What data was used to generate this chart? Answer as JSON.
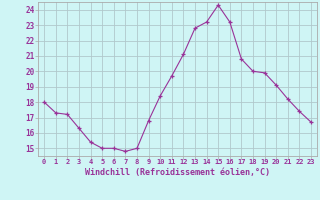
{
  "x": [
    0,
    1,
    2,
    3,
    4,
    5,
    6,
    7,
    8,
    9,
    10,
    11,
    12,
    13,
    14,
    15,
    16,
    17,
    18,
    19,
    20,
    21,
    22,
    23
  ],
  "y": [
    18,
    17.3,
    17.2,
    16.3,
    15.4,
    15.0,
    15.0,
    14.8,
    15.0,
    16.8,
    18.4,
    19.7,
    21.1,
    22.8,
    23.2,
    24.3,
    23.2,
    20.8,
    20.0,
    19.9,
    19.1,
    18.2,
    17.4,
    16.7
  ],
  "ylim": [
    14.5,
    24.5
  ],
  "yticks": [
    15,
    16,
    17,
    18,
    19,
    20,
    21,
    22,
    23,
    24
  ],
  "xtick_labels": [
    "0",
    "1",
    "2",
    "3",
    "4",
    "5",
    "6",
    "7",
    "8",
    "9",
    "10",
    "11",
    "12",
    "13",
    "14",
    "15",
    "16",
    "17",
    "18",
    "19",
    "20",
    "21",
    "22",
    "23"
  ],
  "xlabel": "Windchill (Refroidissement éolien,°C)",
  "line_color": "#993399",
  "marker_color": "#993399",
  "bg_color": "#cff5f5",
  "grid_color": "#b0c8cc",
  "text_color": "#993399",
  "spine_color": "#aaaaaa"
}
